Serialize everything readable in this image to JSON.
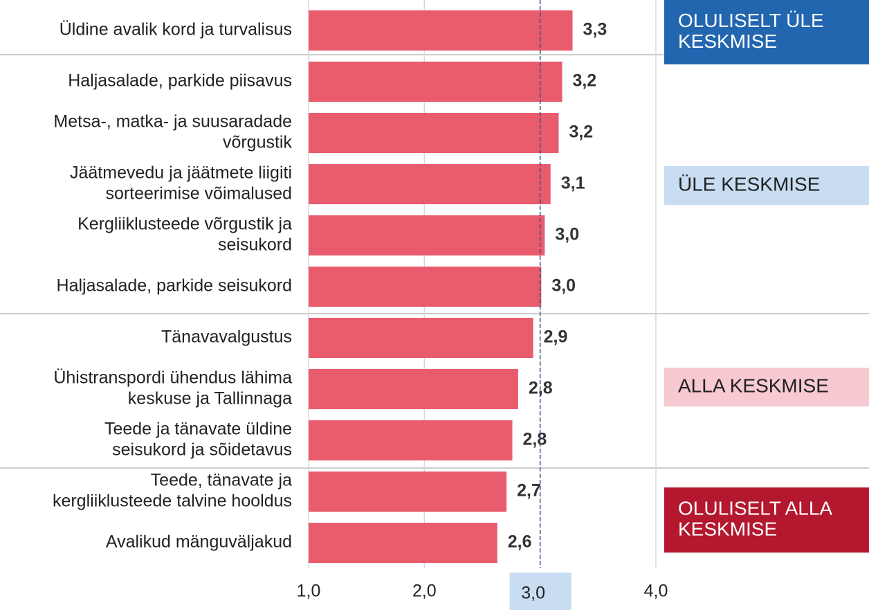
{
  "chart_data": {
    "type": "bar",
    "orientation": "horizontal",
    "categories": [
      [
        "Üldine avalik kord ja turvalisus"
      ],
      [
        "Haljasalade, parkide piisavus"
      ],
      [
        "Metsa-, matka- ja suusaradade",
        "võrgustik"
      ],
      [
        "Jäätmevedu ja jäätmete liigiti",
        "sorteerimise võimalused"
      ],
      [
        "Kergliiklusteede võrgustik ja",
        "seisukord"
      ],
      [
        "Haljasalade, parkide seisukord"
      ],
      [
        "Tänavavalgustus"
      ],
      [
        "Ühistranspordi ühendus lähima",
        "keskuse ja Tallinnaga"
      ],
      [
        "Teede ja tänavate üldine",
        "seisukord ja sõidetavus"
      ],
      [
        "Teede, tänavate ja",
        "kergliiklusteede talvine hooldus"
      ],
      [
        "Avalikud mänguväljakud"
      ]
    ],
    "values": [
      3.28,
      3.19,
      3.16,
      3.09,
      3.04,
      3.01,
      2.94,
      2.81,
      2.76,
      2.71,
      2.63
    ],
    "value_labels": [
      "3,3",
      "3,2",
      "3,2",
      "3,1",
      "3,0",
      "3,0",
      "2,9",
      "2,8",
      "2,8",
      "2,7",
      "2,6"
    ],
    "color": "#e85c6e",
    "xlim": [
      1,
      4
    ],
    "xticks": [
      {
        "value": 1,
        "label": "1,0"
      },
      {
        "value": 2,
        "label": "2,0"
      },
      {
        "value": 4,
        "label": "4,0"
      }
    ],
    "reference_line": {
      "value": 3,
      "label": "3,0",
      "color": "#2b4f86"
    },
    "grid": true,
    "groups": [
      {
        "label": [
          "OLULISELT ÜLE",
          "KESKMISE"
        ],
        "color": "#2366b0",
        "text_color": "#ffffff"
      },
      {
        "label": [
          "ÜLE KESKMISE"
        ],
        "color": "#c8ddf1",
        "text_color": "#222222"
      },
      {
        "label": [
          "ALLA KESKMISE"
        ],
        "color": "#f7c9d1",
        "text_color": "#222222"
      },
      {
        "label": [
          "OLULISELT ALLA",
          "KESKMISE"
        ],
        "color": "#b3182e",
        "text_color": "#ffffff"
      }
    ]
  }
}
